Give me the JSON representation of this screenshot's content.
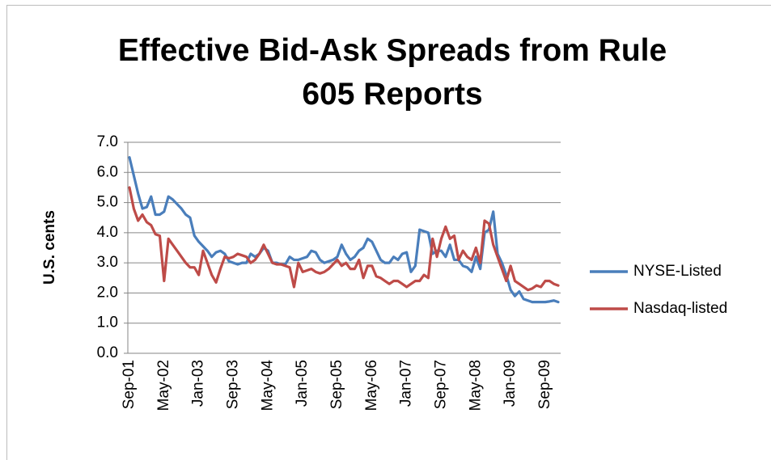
{
  "chart_data": {
    "type": "line",
    "title": "Effective Bid-Ask Spreads from Rule 605 Reports",
    "y_label": "U.S. cents",
    "categories": [
      "Sep-01",
      null,
      null,
      null,
      null,
      null,
      null,
      null,
      "May-02",
      null,
      null,
      null,
      null,
      null,
      null,
      null,
      "Jan-03",
      null,
      null,
      null,
      null,
      null,
      null,
      null,
      "Sep-03",
      null,
      null,
      null,
      null,
      null,
      null,
      null,
      "May-04",
      null,
      null,
      null,
      null,
      null,
      null,
      null,
      "Jan-05",
      null,
      null,
      null,
      null,
      null,
      null,
      null,
      "Sep-05",
      null,
      null,
      null,
      null,
      null,
      null,
      null,
      "May-06",
      null,
      null,
      null,
      null,
      null,
      null,
      null,
      "Jan-07",
      null,
      null,
      null,
      null,
      null,
      null,
      null,
      "Sep-07",
      null,
      null,
      null,
      null,
      null,
      null,
      null,
      "May-08",
      null,
      null,
      null,
      null,
      null,
      null,
      null,
      "Jan-09",
      null,
      null,
      null,
      null,
      null,
      null,
      null,
      "Sep-09",
      null,
      null,
      null
    ],
    "series": [
      {
        "name": "NYSE-Listed",
        "color": "#4a7ebb",
        "values": [
          6.5,
          5.9,
          5.3,
          4.8,
          4.85,
          5.2,
          4.6,
          4.6,
          4.7,
          5.2,
          5.1,
          4.95,
          4.8,
          4.6,
          4.5,
          3.9,
          3.7,
          3.55,
          3.4,
          3.2,
          3.35,
          3.4,
          3.3,
          3.05,
          3.0,
          2.95,
          3.0,
          3.0,
          3.3,
          3.2,
          3.3,
          3.5,
          3.4,
          3.0,
          3.0,
          2.95,
          2.95,
          3.2,
          3.1,
          3.1,
          3.15,
          3.2,
          3.4,
          3.35,
          3.1,
          3.0,
          3.05,
          3.1,
          3.2,
          3.6,
          3.3,
          3.1,
          3.2,
          3.4,
          3.5,
          3.8,
          3.7,
          3.4,
          3.1,
          3.0,
          3.0,
          3.2,
          3.1,
          3.3,
          3.35,
          2.7,
          2.9,
          4.1,
          4.05,
          4.0,
          3.3,
          3.4,
          3.4,
          3.2,
          3.6,
          3.1,
          3.1,
          2.9,
          2.85,
          2.7,
          3.2,
          2.8,
          4.0,
          4.1,
          4.7,
          3.3,
          3.0,
          2.6,
          2.1,
          1.9,
          2.05,
          1.8,
          1.75,
          1.7,
          1.7,
          1.7,
          1.7,
          1.72,
          1.75,
          1.7
        ]
      },
      {
        "name": "Nasdaq-listed",
        "color": "#be4b48",
        "values": [
          5.5,
          4.8,
          4.4,
          4.6,
          4.35,
          4.25,
          3.95,
          3.9,
          2.4,
          3.8,
          3.6,
          3.4,
          3.2,
          3.0,
          2.85,
          2.85,
          2.6,
          3.4,
          3.0,
          2.6,
          2.35,
          2.8,
          3.2,
          3.15,
          3.2,
          3.3,
          3.25,
          3.2,
          3.0,
          3.1,
          3.3,
          3.6,
          3.3,
          3.0,
          2.95,
          2.95,
          2.9,
          2.85,
          2.2,
          3.0,
          2.7,
          2.75,
          2.8,
          2.7,
          2.65,
          2.7,
          2.8,
          2.95,
          3.1,
          2.9,
          3.0,
          2.8,
          2.8,
          3.1,
          2.5,
          2.9,
          2.9,
          2.55,
          2.5,
          2.4,
          2.3,
          2.4,
          2.4,
          2.3,
          2.2,
          2.3,
          2.4,
          2.4,
          2.6,
          2.5,
          3.8,
          3.2,
          3.8,
          4.2,
          3.8,
          3.9,
          3.1,
          3.4,
          3.2,
          3.1,
          3.5,
          3.0,
          4.4,
          4.3,
          3.6,
          3.2,
          2.8,
          2.4,
          2.9,
          2.4,
          2.3,
          2.2,
          2.1,
          2.15,
          2.25,
          2.2,
          2.4,
          2.4,
          2.3,
          2.25
        ]
      }
    ],
    "ylim": [
      0,
      7
    ],
    "yticks": [
      {
        "value": 0,
        "label": "0.0"
      },
      {
        "value": 1,
        "label": "1.0"
      },
      {
        "value": 2,
        "label": "2.0"
      },
      {
        "value": 3,
        "label": "3.0"
      },
      {
        "value": 4,
        "label": "4.0"
      },
      {
        "value": 5,
        "label": "5.0"
      },
      {
        "value": 6,
        "label": "6.0"
      },
      {
        "value": 7,
        "label": "7.0"
      }
    ],
    "grid": true,
    "legend": "right"
  }
}
